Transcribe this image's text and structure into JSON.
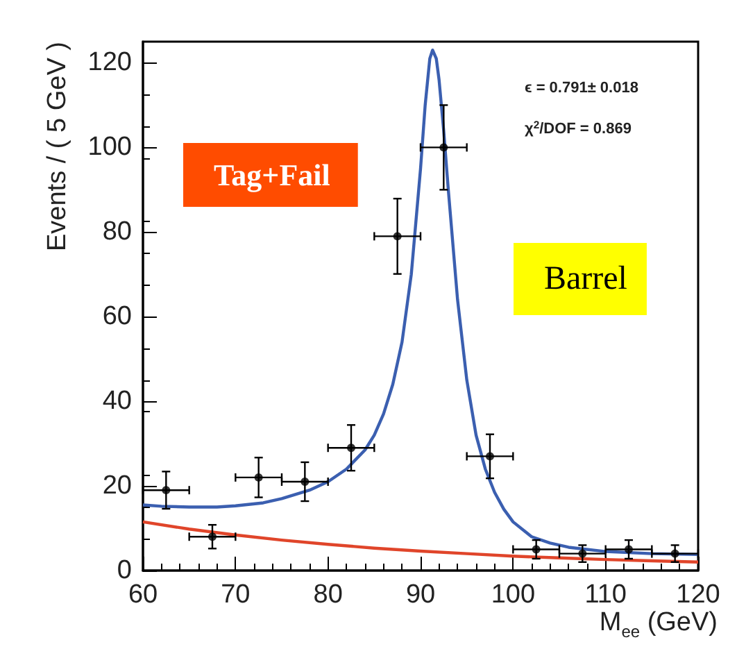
{
  "chart_data": {
    "type": "scatter",
    "xlabel": "M$_{ee}$ (GeV)",
    "ylabel": "Events / ( 5 GeV )",
    "xlim": [
      60,
      120
    ],
    "xticks": [
      60,
      70,
      80,
      90,
      100,
      110,
      120
    ],
    "ylim": [
      0,
      125
    ],
    "yticks": [
      0,
      20,
      40,
      60,
      80,
      100,
      120
    ],
    "marker": "circle",
    "annotations": [
      "ϵ = 0.791± 0.018",
      "χ$^{2}$/DOF = 0.869",
      "Tag+Fail",
      "Barrel"
    ],
    "series": [
      {
        "color": "#000000",
        "x": [
          62.5,
          67.5,
          72.5,
          77.5,
          82.5,
          87.5,
          92.5,
          97.5,
          102.5,
          107.5,
          112.5,
          117.5
        ],
        "values": [
          19,
          8,
          22,
          21,
          29,
          79,
          100,
          27,
          5,
          4,
          5,
          4
        ],
        "errors": [
          4.4,
          2.8,
          4.7,
          4.6,
          5.4,
          8.9,
          10,
          5.2,
          2.2,
          2,
          2.2,
          2
        ],
        "xerrors": [
          2.5,
          2.5,
          2.5,
          2.5,
          2.5,
          2.5,
          2.5,
          2.5,
          2.5,
          2.5,
          2.5,
          2.5
        ]
      },
      {
        "type": "line",
        "color": "#3b5fb0",
        "marker": "none",
        "line_style": "solid",
        "x": [
          60,
          62,
          65,
          68,
          70,
          73,
          75,
          78,
          80,
          82,
          84,
          85,
          86,
          87,
          88,
          89,
          90,
          90.5,
          91,
          91.3,
          91.7,
          92,
          92.5,
          93,
          94,
          95,
          96,
          97,
          98,
          99,
          100,
          102,
          104,
          106,
          110,
          115,
          120
        ],
        "values": [
          15.5,
          15.2,
          15,
          15,
          15.3,
          16,
          17,
          19,
          21,
          24,
          28.5,
          32,
          37,
          44,
          54,
          70,
          95,
          110,
          121,
          123,
          121,
          116,
          104,
          90,
          64,
          45,
          32,
          24,
          18.5,
          14.5,
          11.5,
          8,
          6.5,
          5.5,
          4.5,
          4,
          3.8
        ]
      },
      {
        "type": "line",
        "color": "#e0452a",
        "marker": "none",
        "line_style": "solid",
        "x": [
          60,
          65,
          70,
          75,
          80,
          85,
          90,
          95,
          100,
          105,
          110,
          115,
          120
        ],
        "values": [
          11.5,
          9.8,
          8.4,
          7.2,
          6.2,
          5.3,
          4.6,
          4,
          3.4,
          3,
          2.6,
          2.3,
          2
        ]
      }
    ]
  }
}
